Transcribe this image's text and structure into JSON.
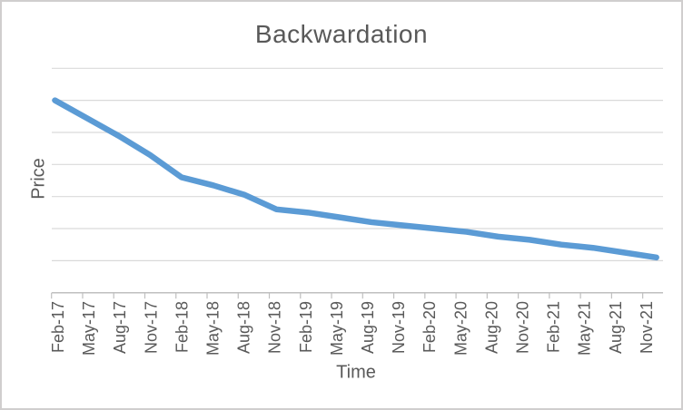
{
  "chart": {
    "title": "Backwardation",
    "x_axis_label": "Time",
    "y_axis_label": "Price",
    "accent_color": "#5b9bd5",
    "gridline_color": "#d9d9d9",
    "axis_line_color": "#bfbfbf",
    "tick_color": "#bfbfbf",
    "text_color": "#595959",
    "frame_border_color": "#d0cece"
  },
  "chart_data": {
    "type": "line",
    "title": "Backwardation",
    "xlabel": "Time",
    "ylabel": "Price",
    "categories": [
      "Feb-17",
      "May-17",
      "Aug-17",
      "Nov-17",
      "Feb-18",
      "May-18",
      "Aug-18",
      "Nov-18",
      "Feb-19",
      "May-19",
      "Aug-19",
      "Nov-19",
      "Feb-20",
      "May-20",
      "Aug-20",
      "Nov-20",
      "Feb-21",
      "May-21",
      "Aug-21",
      "Nov-21"
    ],
    "series": [
      {
        "name": "Price",
        "color": "#5b9bd5",
        "values": [
          6.0,
          5.45,
          4.9,
          4.3,
          3.6,
          3.35,
          3.05,
          2.6,
          2.5,
          2.35,
          2.2,
          2.1,
          2.0,
          1.9,
          1.75,
          1.65,
          1.5,
          1.4,
          1.25,
          1.1
        ]
      }
    ],
    "ylim": [
      0,
      7
    ],
    "y_gridline_interval": 1,
    "y_tick_labels_visible": false,
    "x_tick_label_rotation": 90,
    "grid": true,
    "legend": false
  }
}
